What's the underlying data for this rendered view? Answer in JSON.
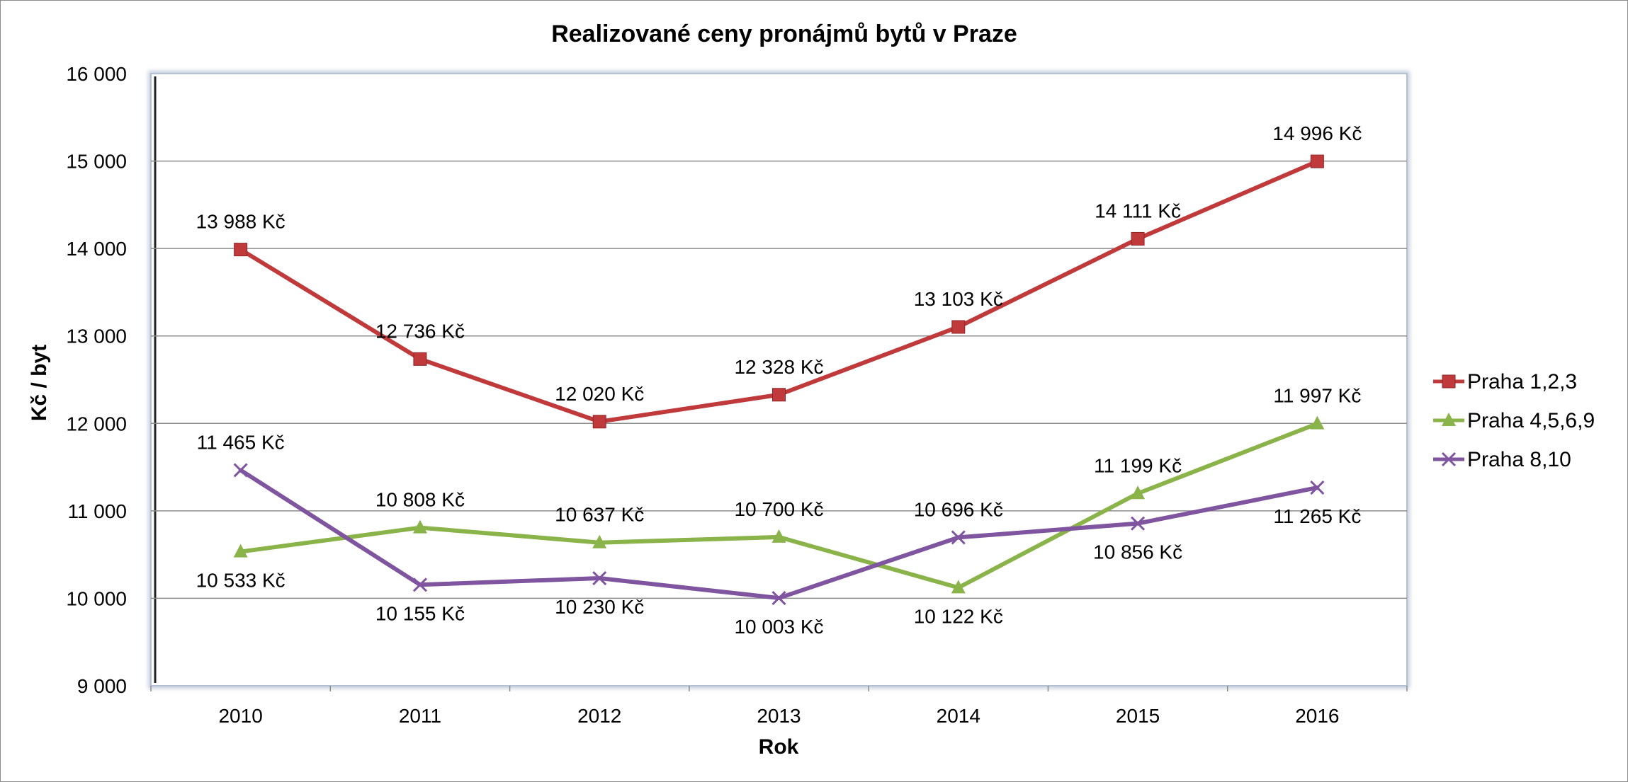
{
  "chart_data": {
    "type": "line",
    "title": "Realizované ceny pronájmů bytů v Praze",
    "xlabel": "Rok",
    "ylabel": "Kč / byt",
    "categories": [
      "2010",
      "2011",
      "2012",
      "2013",
      "2014",
      "2015",
      "2016"
    ],
    "ylim": [
      9000,
      16000
    ],
    "yticks": [
      9000,
      10000,
      11000,
      12000,
      13000,
      14000,
      15000,
      16000
    ],
    "ytick_labels": [
      "9 000",
      "10 000",
      "11 000",
      "12 000",
      "13 000",
      "14 000",
      "15 000",
      "16 000"
    ],
    "grid": true,
    "legend_position": "right",
    "series": [
      {
        "name": "Praha 1,2,3",
        "color": "#c0393b",
        "marker": "square",
        "values": [
          13988,
          12736,
          12020,
          12328,
          13103,
          14111,
          14996
        ],
        "labels": [
          "13 988 Kč",
          "12 736 Kč",
          "12 020 Kč",
          "12 328 Kč",
          "13 103 Kč",
          "14 111 Kč",
          "14 996 Kč"
        ]
      },
      {
        "name": "Praha 4,5,6,9",
        "color": "#8ab34a",
        "marker": "triangle",
        "values": [
          10533,
          10808,
          10637,
          10700,
          10122,
          11199,
          11997
        ],
        "labels": [
          "10 533 Kč",
          "10 808 Kč",
          "10 637 Kč",
          "10 700 Kč",
          "10 122 Kč",
          "11 199 Kč",
          "11 997 Kč"
        ]
      },
      {
        "name": "Praha 8,10",
        "color": "#7f55a0",
        "marker": "x",
        "values": [
          11465,
          10155,
          10230,
          10003,
          10696,
          10856,
          11265
        ],
        "labels": [
          "11 465 Kč",
          "10 155 Kč",
          "10 230 Kč",
          "10 003 Kč",
          "10 696 Kč",
          "10 856 Kč",
          "11 265 Kč"
        ]
      }
    ]
  }
}
